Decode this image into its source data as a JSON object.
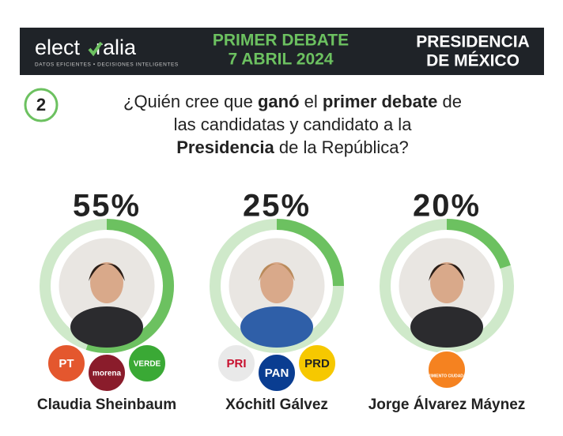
{
  "header": {
    "logo_parts": [
      "elect",
      "ralia"
    ],
    "tagline": "DATOS EFICIENTES • DECISIONES INTELIGENTES",
    "event": [
      "PRIMER DEBATE",
      "7 ABRIL 2024"
    ],
    "office": [
      "PRESIDENCIA",
      "DE MÉXICO"
    ]
  },
  "question": {
    "number": "2",
    "lines": [
      [
        {
          "text": "¿Quién cree que ",
          "bold": false
        },
        {
          "text": "ganó",
          "bold": true
        },
        {
          "text": " el ",
          "bold": false
        },
        {
          "text": "primer debate",
          "bold": true
        },
        {
          "text": " de",
          "bold": false
        }
      ],
      [
        {
          "text": "las candidatas y candidato a la",
          "bold": false
        }
      ],
      [
        {
          "text": "Presidencia",
          "bold": true
        },
        {
          "text": " de la República?",
          "bold": false
        }
      ]
    ]
  },
  "chart_data": {
    "type": "ring",
    "categories": [
      "Claudia Sheinbaum",
      "Xóchitl Gálvez",
      "Jorge Álvarez Máynez"
    ],
    "values": [
      55,
      25,
      20
    ],
    "value_labels": [
      "55%",
      "25%",
      "20%"
    ],
    "color": "#6cc160",
    "track_color": "#cfe9ca",
    "parties": [
      [
        "PT",
        "morena",
        "VERDE"
      ],
      [
        "PRI",
        "PAN",
        "PRD"
      ],
      [
        "MOVIMIENTO CIUDADANO"
      ]
    ]
  }
}
